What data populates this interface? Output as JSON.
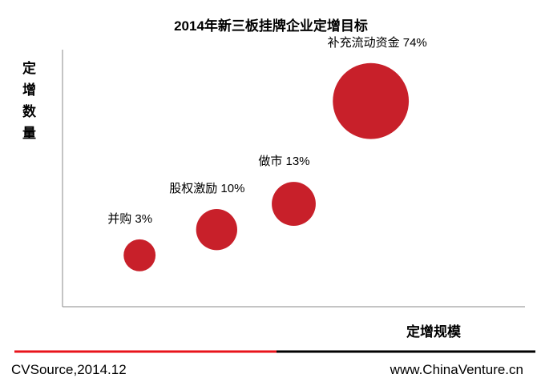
{
  "chart_data": {
    "type": "scatter",
    "title": "2014年新三板挂牌企业定增目标",
    "xlabel": "定增规模",
    "ylabel": "定增数量",
    "xlim": [
      0,
      6
    ],
    "ylim": [
      0,
      10
    ],
    "grid": false,
    "color": "#C8202A",
    "points": [
      {
        "label": "并购 3%",
        "x": 1,
        "y": 2,
        "size": 3
      },
      {
        "label": "股权激励 10%",
        "x": 2,
        "y": 3,
        "size": 10
      },
      {
        "label": "做市 13%",
        "x": 3,
        "y": 4,
        "size": 13
      },
      {
        "label": "补充流动资金 74%",
        "x": 4,
        "y": 8,
        "size": 74
      }
    ]
  },
  "footer": {
    "source": "CVSource,2014.12",
    "website": "www.ChinaVenture.cn",
    "line_colors": [
      "#E8141B",
      "#000000"
    ]
  }
}
